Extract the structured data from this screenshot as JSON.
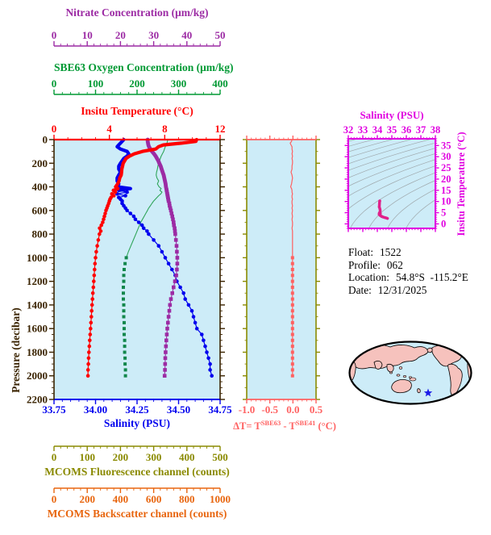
{
  "titles": {
    "nitrate": "Nitrate Concentration (μm/kg)",
    "oxygen": "SBE63 Oxygen Concentration (μm/kg)",
    "temperature": "Insitu Temperature (°C)",
    "pressure": "Pressure (decibar)",
    "salinity": "Salinity (PSU)",
    "fluorescence": "MCOMS Fluorescence channel (counts)",
    "backscatter": "MCOMS Backscatter channel (counts)",
    "dt_prefix": "ΔT= T",
    "dt_sup1": "SBE63",
    "dt_mid": " - T",
    "dt_sup2": "SBE41",
    "dt_suffix": " (°C)",
    "ts_salinity": "Salinity (PSU)",
    "ts_temperature": "Insitu Temperature (°C)"
  },
  "info": {
    "float_label": "Float:",
    "float_value": "1522",
    "profile_label": "Profile:",
    "profile_value": "062",
    "location_label": "Location:",
    "location_value": "54.8°S  -115.2°E",
    "date_label": "Date:",
    "date_value": "12/31/2025"
  },
  "colors": {
    "red": "#FF0000",
    "blue": "#0000EE",
    "purple": "#9C2BA4",
    "green": "#009933",
    "green_line": "#2FA55A",
    "green_dark": "#12874C",
    "dark_brown": "#3A2300",
    "salmon": "#FF6161",
    "olive": "#8A8A00",
    "orange": "#E8650E",
    "magenta": "#E000E0",
    "ts_profile": "#E0218A",
    "plot_bg": "#CDECF8",
    "land": "#F6C2BD",
    "ocean": "#CDECF8",
    "star": "#1A1AE8",
    "contour": "#9FA8AC",
    "black": "#000000"
  },
  "axes": {
    "nitrate": {
      "tick_labels": [
        "0",
        "10",
        "20",
        "30",
        "40",
        "50"
      ],
      "range": [
        0,
        50
      ]
    },
    "oxygen": {
      "tick_labels": [
        "0",
        "100",
        "200",
        "300",
        "400"
      ],
      "range": [
        0,
        400
      ]
    },
    "temperature": {
      "tick_labels": [
        "0",
        "4",
        "8",
        "12"
      ],
      "range": [
        0,
        12
      ]
    },
    "pressure": {
      "tick_labels": [
        "0",
        "200",
        "400",
        "600",
        "800",
        "1000",
        "1200",
        "1400",
        "1600",
        "1800",
        "2000",
        "2200"
      ],
      "range": [
        0,
        2200
      ]
    },
    "salinity": {
      "tick_labels": [
        "33.75",
        "34.00",
        "34.25",
        "34.50",
        "34.75"
      ],
      "range": [
        33.75,
        34.75
      ]
    },
    "delta_t": {
      "tick_labels": [
        "-1.0",
        "-0.5",
        "0.0",
        "0.5"
      ],
      "range": [
        -1.0,
        0.5
      ]
    },
    "fluorescence": {
      "tick_labels": [
        "0",
        "100",
        "200",
        "300",
        "400",
        "500"
      ],
      "range": [
        0,
        500
      ]
    },
    "backscatter": {
      "tick_labels": [
        "0",
        "200",
        "400",
        "600",
        "800",
        "1000"
      ],
      "range": [
        0,
        1000
      ]
    },
    "ts_sal": {
      "tick_labels": [
        "32",
        "33",
        "34",
        "35",
        "36",
        "37",
        "38"
      ],
      "range": [
        32,
        38
      ]
    },
    "ts_temp": {
      "tick_labels": [
        "0",
        "5",
        "10",
        "15",
        "20",
        "25",
        "30",
        "35"
      ],
      "range": [
        -2,
        38
      ]
    }
  },
  "chart_data": [
    {
      "type": "line",
      "title": "Vertical profiles vs pressure",
      "ylabel": "Pressure (decibar)",
      "ylim": [
        0,
        2200
      ],
      "y_inverted": true,
      "grid": false,
      "pressure_db": [
        0,
        15,
        30,
        45,
        60,
        80,
        100,
        120,
        140,
        160,
        180,
        200,
        225,
        250,
        275,
        300,
        325,
        350,
        375,
        400,
        415,
        430,
        445,
        460,
        475,
        490,
        505,
        520,
        540,
        560,
        580,
        600,
        625,
        650,
        675,
        700,
        725,
        750,
        775,
        800,
        850,
        900,
        950,
        1000,
        1050,
        1100,
        1150,
        1200,
        1250,
        1300,
        1350,
        1400,
        1450,
        1500,
        1550,
        1600,
        1650,
        1700,
        1750,
        1800,
        1850,
        1900,
        1950,
        2000
      ],
      "series": [
        {
          "name": "Insitu Temperature (°C)",
          "color": "red",
          "axis_range": [
            0,
            12
          ],
          "values": [
            10.3,
            10.25,
            9.2,
            7.9,
            7.55,
            7.35,
            6.4,
            5.8,
            5.45,
            5.2,
            5.1,
            5.0,
            4.95,
            4.9,
            4.88,
            4.85,
            4.75,
            4.7,
            4.6,
            4.45,
            4.62,
            4.3,
            4.42,
            4.18,
            4.32,
            4.12,
            4.05,
            4.0,
            3.95,
            3.88,
            3.82,
            3.76,
            3.7,
            3.64,
            3.58,
            3.52,
            3.42,
            3.3,
            3.38,
            3.28,
            3.2,
            3.12,
            3.05,
            3.0,
            2.96,
            2.93,
            2.9,
            2.87,
            2.84,
            2.81,
            2.78,
            2.75,
            2.72,
            2.7,
            2.67,
            2.64,
            2.61,
            2.58,
            2.55,
            2.52,
            2.5,
            2.48,
            2.46,
            2.45
          ]
        },
        {
          "name": "Salinity (PSU)",
          "color": "blue",
          "axis_range": [
            33.75,
            34.75
          ],
          "values": [
            34.17,
            34.16,
            34.15,
            34.14,
            34.13,
            34.15,
            34.19,
            34.2,
            34.19,
            34.17,
            34.16,
            34.15,
            34.14,
            34.14,
            34.15,
            34.14,
            34.13,
            34.13,
            34.14,
            34.13,
            34.21,
            34.14,
            34.19,
            34.13,
            34.18,
            34.14,
            34.15,
            34.16,
            34.16,
            34.17,
            34.18,
            34.19,
            34.21,
            34.23,
            34.24,
            34.26,
            34.28,
            34.29,
            34.31,
            34.32,
            34.35,
            34.38,
            34.4,
            34.42,
            34.44,
            34.46,
            34.48,
            34.49,
            34.51,
            34.53,
            34.54,
            34.56,
            34.58,
            34.59,
            34.6,
            34.61,
            34.64,
            34.65,
            34.66,
            34.67,
            34.68,
            34.69,
            34.69,
            34.7
          ]
        },
        {
          "name": "Nitrate Concentration (μm/kg)",
          "color": "purple",
          "axis_range": [
            0,
            50
          ],
          "values": [
            28.2,
            28.2,
            28.3,
            28.4,
            28.6,
            29.0,
            29.5,
            30.1,
            30.6,
            31.0,
            31.4,
            31.7,
            32.1,
            32.4,
            32.7,
            33.0,
            33.2,
            33.4,
            33.6,
            33.7,
            33.8,
            33.9,
            34.0,
            34.1,
            34.2,
            34.3,
            34.4,
            34.5,
            34.7,
            34.8,
            35.0,
            35.2,
            35.4,
            35.6,
            35.8,
            36.0,
            36.1,
            36.3,
            36.4,
            36.5,
            36.7,
            36.9,
            37.0,
            37.1,
            37.1,
            37.0,
            36.8,
            36.4,
            36.0,
            35.6,
            35.2,
            34.9,
            34.7,
            34.5,
            34.3,
            34.1,
            33.95,
            33.8,
            33.7,
            33.6,
            33.5,
            33.45,
            33.4,
            33.3
          ]
        },
        {
          "name": "SBE63 Oxygen Concentration (μm/kg)",
          "color": "green",
          "axis_range": [
            0,
            400
          ],
          "values": [
            274,
            273,
            272,
            270,
            268,
            266,
            264,
            261,
            258,
            256,
            254,
            252,
            250,
            249,
            247,
            246,
            248,
            252,
            249,
            253,
            258,
            255,
            260,
            257,
            252,
            248,
            244,
            240,
            236,
            232,
            228,
            225,
            221,
            217,
            213,
            209,
            206,
            203,
            200,
            197,
            191,
            185,
            179,
            174,
            171,
            169,
            168,
            168,
            167,
            167,
            167,
            168,
            168,
            168,
            169,
            169,
            169,
            170,
            170,
            170,
            171,
            171,
            172,
            172
          ]
        },
        {
          "name": "MCOMS Fluorescence channel (counts)",
          "color": "olive",
          "axis_range": [
            0,
            500
          ],
          "values": null,
          "note": "axis shown, no visible curve"
        },
        {
          "name": "MCOMS Backscatter channel (counts)",
          "color": "orange",
          "axis_range": [
            0,
            1000
          ],
          "values": null,
          "note": "axis shown, no visible curve"
        }
      ]
    },
    {
      "type": "line",
      "title": "ΔT= T(SBE63) - T(SBE41) (°C)",
      "xlim": [
        -1.0,
        0.5
      ],
      "ylim": [
        0,
        2200
      ],
      "y_inverted": true,
      "values": [
        -0.02,
        -0.03,
        -0.06,
        -0.04,
        -0.02,
        -0.02,
        -0.01,
        -0.02,
        -0.01,
        -0.02,
        -0.01,
        -0.01,
        -0.02,
        -0.02,
        -0.04,
        -0.02,
        -0.01,
        -0.02,
        -0.03,
        -0.05,
        -0.03,
        -0.02,
        -0.02,
        -0.01,
        -0.02,
        -0.02,
        -0.01,
        -0.02,
        -0.02,
        -0.01,
        -0.02,
        -0.01,
        -0.02,
        -0.01,
        -0.02,
        -0.01,
        -0.01,
        -0.02,
        -0.01,
        -0.01,
        -0.01,
        -0.01,
        -0.01,
        -0.01,
        -0.01,
        -0.01,
        -0.01,
        -0.01,
        -0.01,
        -0.01,
        -0.01,
        -0.01,
        -0.01,
        -0.01,
        -0.01,
        -0.01,
        -0.01,
        -0.01,
        -0.01,
        -0.01,
        -0.01,
        -0.01,
        -0.01,
        -0.01
      ]
    },
    {
      "type": "scatter",
      "title": "T-S diagram",
      "xlabel": "Salinity (PSU)",
      "xlim": [
        32,
        38
      ],
      "ylabel": "Insitu Temperature (°C)",
      "ylim": [
        -2,
        38
      ],
      "note": "gray isopycnal contours in background; magenta profile curve uses the salinity and temperature series of chart 0"
    }
  ],
  "map": {
    "projection": "robinson-like world map, Pacific-centered",
    "marker": "star",
    "marker_color": "#1A1AE8"
  }
}
